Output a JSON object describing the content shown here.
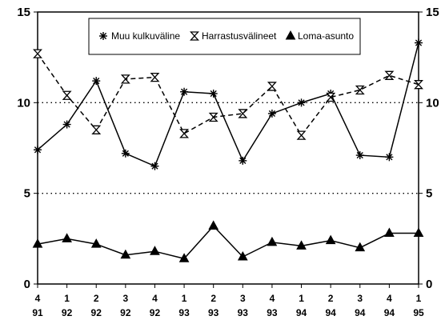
{
  "chart_data": {
    "type": "line",
    "categories": [
      {
        "q": "4",
        "y": "91"
      },
      {
        "q": "1",
        "y": "92"
      },
      {
        "q": "2",
        "y": "92"
      },
      {
        "q": "3",
        "y": "92"
      },
      {
        "q": "4",
        "y": "92"
      },
      {
        "q": "1",
        "y": "93"
      },
      {
        "q": "2",
        "y": "93"
      },
      {
        "q": "3",
        "y": "93"
      },
      {
        "q": "4",
        "y": "93"
      },
      {
        "q": "1",
        "y": "94"
      },
      {
        "q": "2",
        "y": "94"
      },
      {
        "q": "3",
        "y": "94"
      },
      {
        "q": "4",
        "y": "94"
      },
      {
        "q": "1",
        "y": "95"
      }
    ],
    "series": [
      {
        "name": "Muu kulkuväline",
        "marker": "asterisk",
        "line": "solid",
        "values": [
          7.4,
          8.8,
          11.2,
          7.2,
          6.5,
          10.6,
          10.5,
          6.8,
          9.4,
          10.0,
          10.5,
          7.1,
          7.0,
          13.3
        ]
      },
      {
        "name": "Harrastusvälineet",
        "marker": "hourglass",
        "line": "dashed",
        "values": [
          12.7,
          10.4,
          8.5,
          11.3,
          11.4,
          8.3,
          9.2,
          9.4,
          10.9,
          8.2,
          10.3,
          10.7,
          11.5,
          11.0
        ]
      },
      {
        "name": "Loma-asunto",
        "marker": "triangle",
        "line": "solid",
        "values": [
          2.2,
          2.5,
          2.2,
          1.6,
          1.8,
          1.4,
          3.2,
          1.5,
          2.3,
          2.1,
          2.4,
          2.0,
          2.8,
          2.8
        ]
      }
    ],
    "ylim": [
      0,
      15
    ],
    "yticks": [
      0,
      5,
      10,
      15
    ],
    "yticks_right": [
      0,
      5,
      10,
      15
    ],
    "reference_lines": [
      5,
      10
    ],
    "legend_placement": "top-center",
    "title": "",
    "xlabel": "",
    "ylabel": ""
  }
}
